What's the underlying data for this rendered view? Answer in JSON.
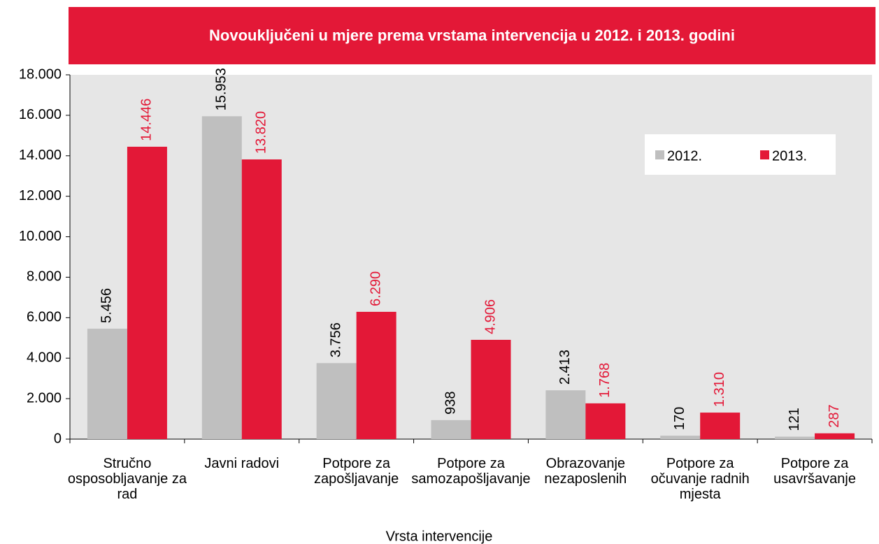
{
  "chart_data": {
    "type": "bar",
    "title": "Novouključeni u mjere prema vrstama intervencija u 2012. i 2013. godini",
    "x_label": "Vrsta intervencije",
    "categories": [
      "Stručno osposobljavanje za rad",
      "Javni radovi",
      "Potpore za zapošljavanje",
      "Potpore za samozapošljavanje",
      "Obrazovanje nezaposlenih",
      "Potpore za očuvanje radnih mjesta",
      "Potpore za usavršavanje"
    ],
    "series": [
      {
        "name": "2012.",
        "color": "#bfbfbf",
        "label_color": "#000000",
        "values": [
          5456,
          15953,
          3756,
          938,
          2413,
          170,
          121
        ],
        "value_labels": [
          "5.456",
          "15.953",
          "3.756",
          "938",
          "2.413",
          "170",
          "121"
        ]
      },
      {
        "name": "2013.",
        "color": "#e31837",
        "label_color": "#e31837",
        "values": [
          14446,
          13820,
          6290,
          4906,
          1768,
          1310,
          287
        ],
        "value_labels": [
          "14.446",
          "13.820",
          "6.290",
          "4.906",
          "1.768",
          "1.310",
          "287"
        ]
      }
    ],
    "ylim": [
      0,
      18000
    ],
    "yticks": [
      0,
      {
        "value": 2000,
        "label": "2.000"
      },
      {
        "value": 4000,
        "label": "4.000"
      },
      {
        "value": 6000,
        "label": "6.000"
      },
      {
        "value": 8000,
        "label": "8.000"
      },
      {
        "value": 10000,
        "label": "10.000"
      },
      {
        "value": 12000,
        "label": "12.000"
      },
      {
        "value": 14000,
        "label": "14.000"
      },
      {
        "value": 16000,
        "label": "16.000"
      },
      {
        "value": 18000,
        "label": "18.000"
      }
    ],
    "legend": "upper right",
    "title_background": "#e31837"
  }
}
